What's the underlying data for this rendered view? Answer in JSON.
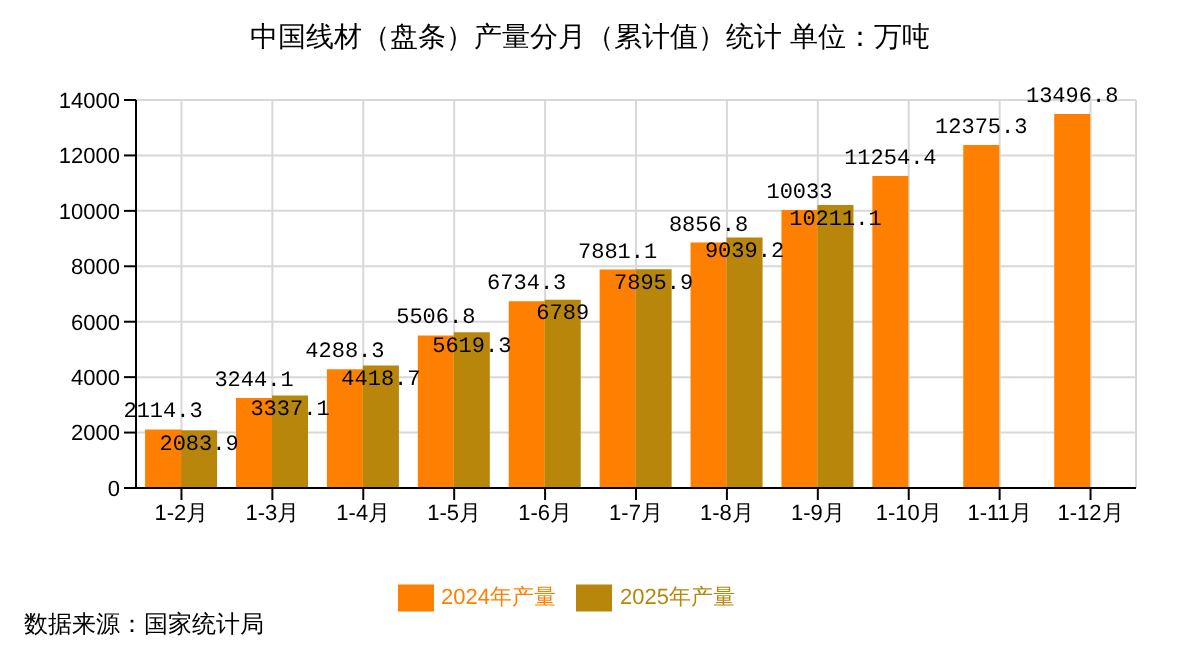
{
  "chart_data": {
    "type": "bar",
    "title": "中国线材（盘条）产量分月（累计值）统计 单位：万吨",
    "categories": [
      "1-2月",
      "1-3月",
      "1-4月",
      "1-5月",
      "1-6月",
      "1-7月",
      "1-8月",
      "1-9月",
      "1-10月",
      "1-11月",
      "1-12月"
    ],
    "series": [
      {
        "name": "2024年产量",
        "color": "#ff8000",
        "values": [
          2114.3,
          3244.1,
          4288.3,
          5506.8,
          6734.3,
          7881.1,
          8856.8,
          10033,
          11254.4,
          12375.3,
          13496.8
        ]
      },
      {
        "name": "2025年产量",
        "color": "#b8860b",
        "values": [
          2083.9,
          3337.1,
          4418.7,
          5619.3,
          6789,
          7895.9,
          9039.2,
          10211.1,
          null,
          null,
          null
        ]
      }
    ],
    "ylim": [
      0,
      14000
    ],
    "yticks": [
      0,
      2000,
      4000,
      6000,
      8000,
      10000,
      12000,
      14000
    ],
    "grid": true,
    "legend": "bottom",
    "data_labels": true,
    "annotations": [
      "数据来源：国家统计局"
    ]
  }
}
